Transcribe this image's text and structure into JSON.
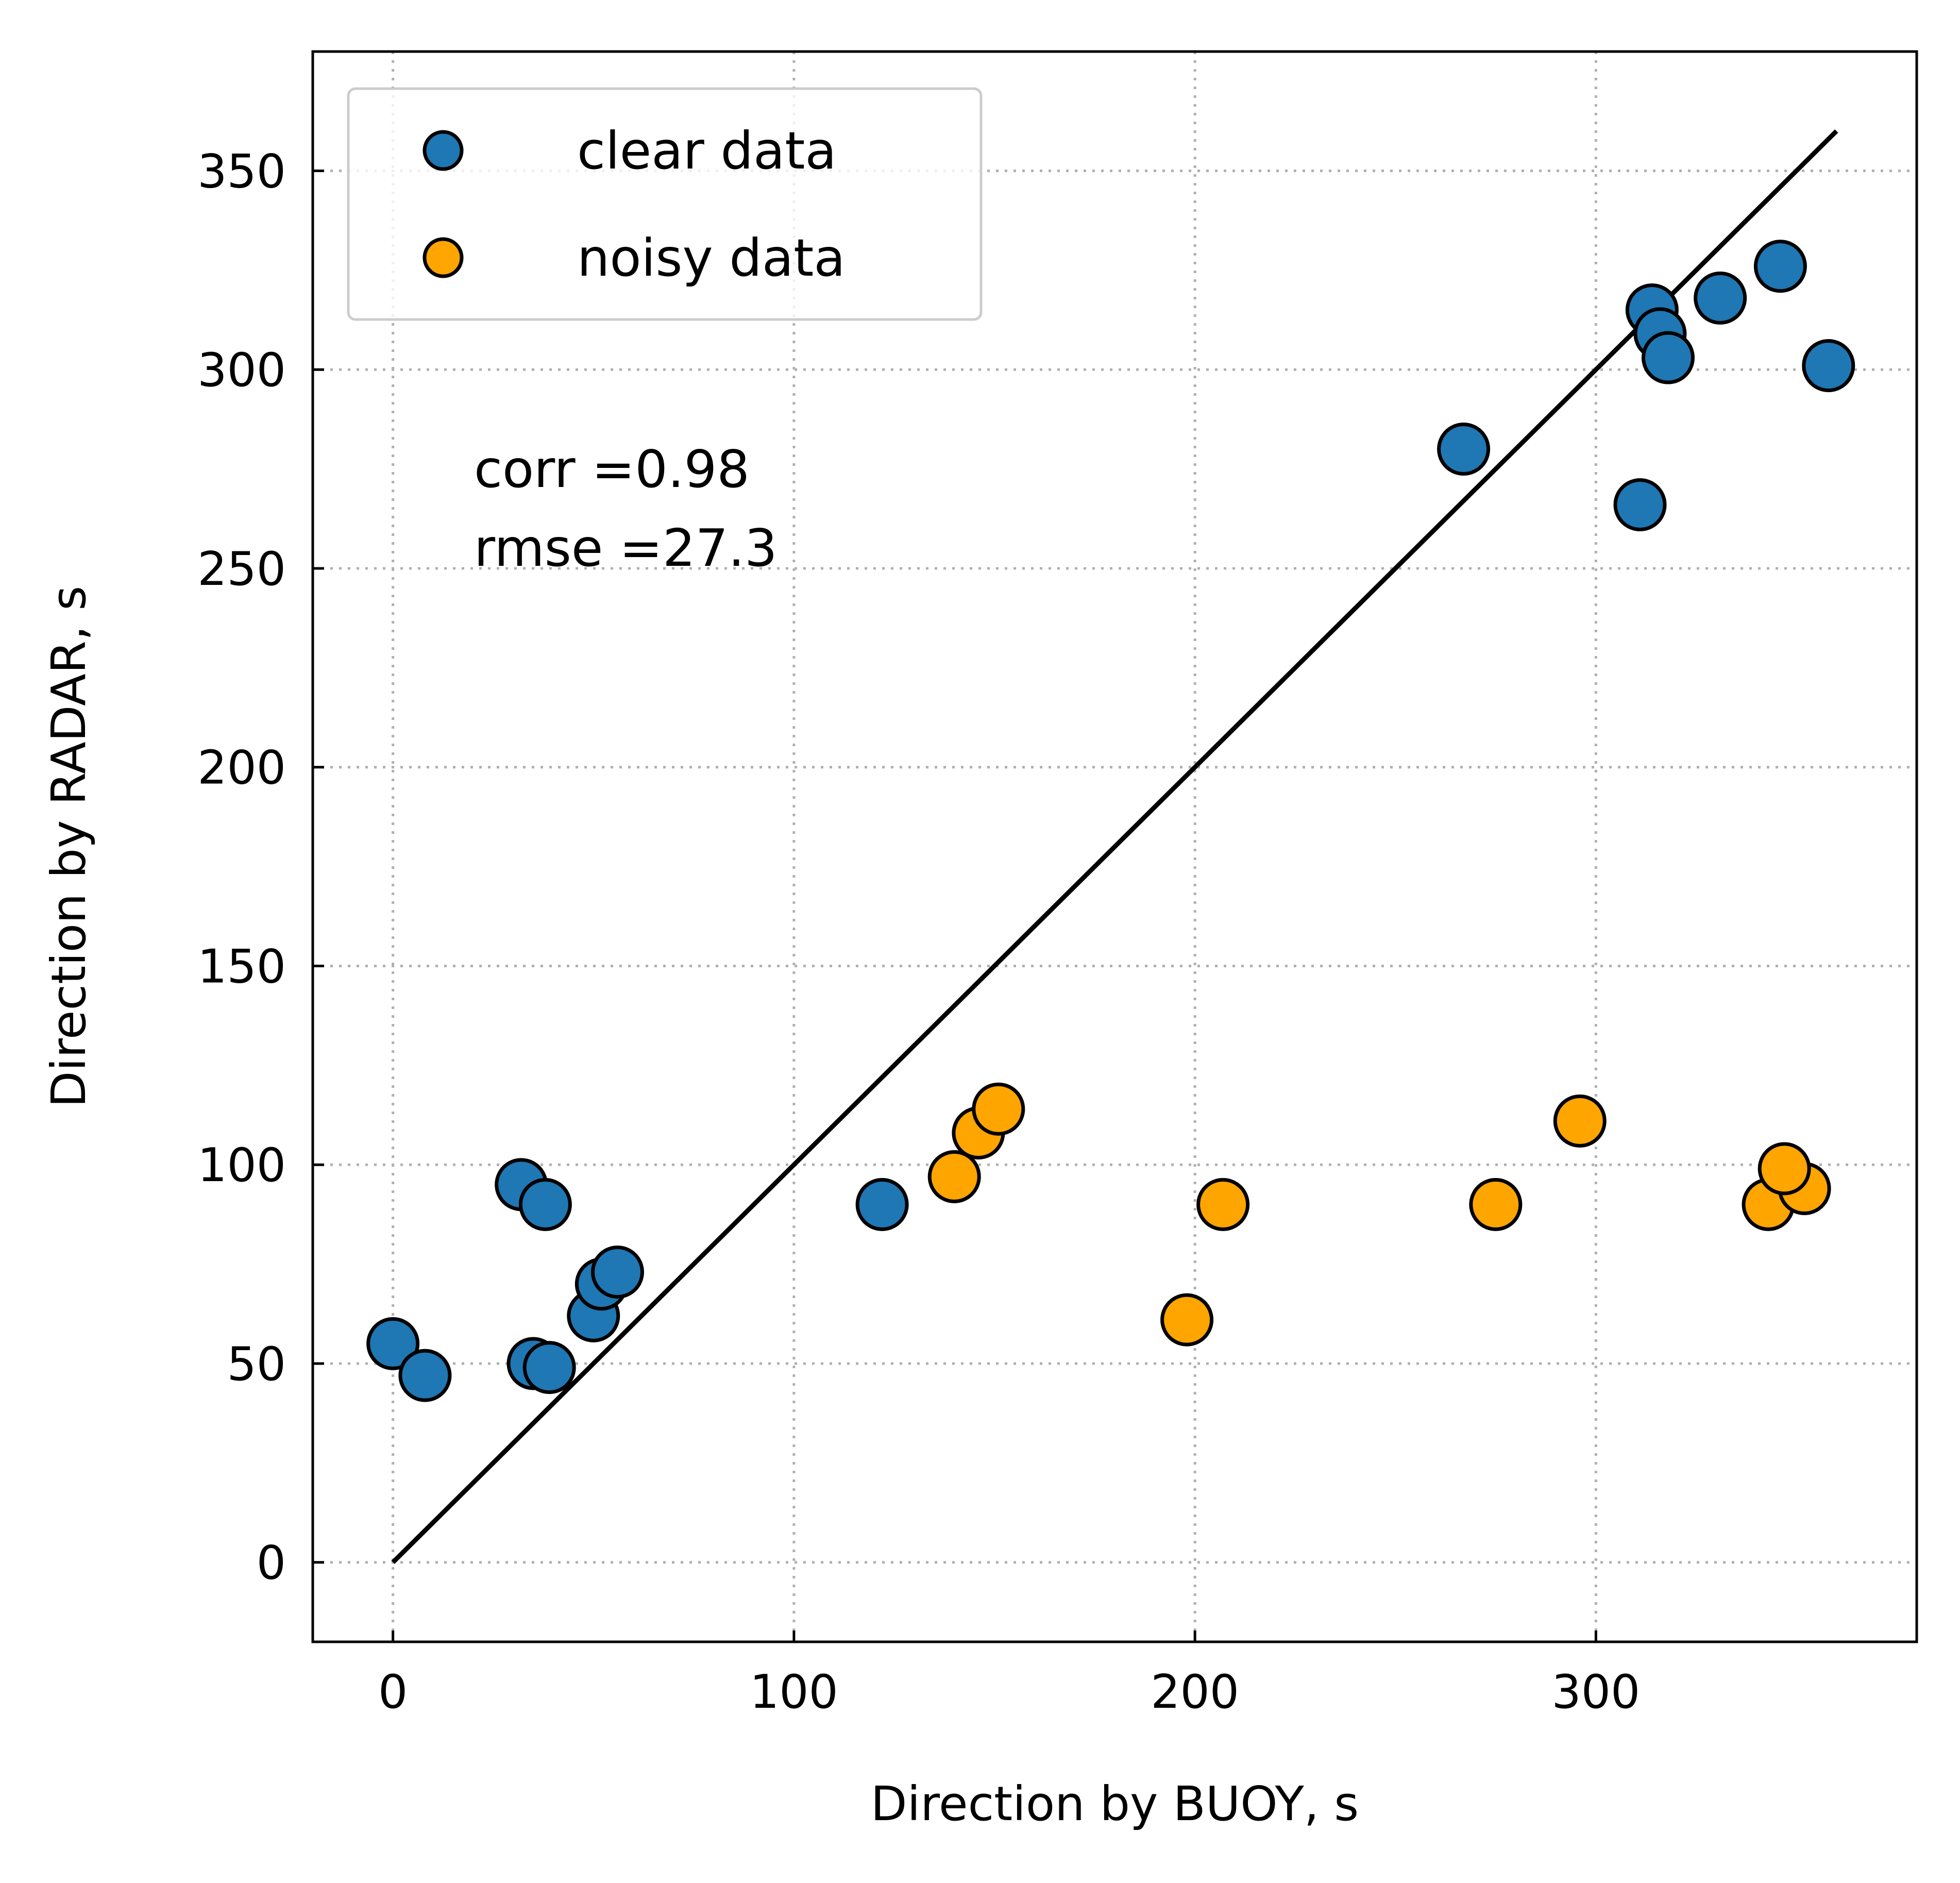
{
  "chart_data": {
    "type": "scatter",
    "title": "",
    "xlabel": "Direction by BUOY, s",
    "ylabel": "Direction by RADAR, s",
    "xlim": [
      -20,
      380
    ],
    "ylim": [
      -20,
      380
    ],
    "xticks": [
      0,
      100,
      200,
      300
    ],
    "yticks": [
      0,
      50,
      100,
      150,
      200,
      250,
      300,
      350
    ],
    "grid": true,
    "legend_position": "upper-left",
    "reference_line": {
      "x": [
        0,
        360
      ],
      "y": [
        0,
        360
      ],
      "color": "#000000"
    },
    "annotations": [
      "corr =0.98",
      "rmse =27.3"
    ],
    "series": [
      {
        "name": "clear data",
        "color": "#1f77b4",
        "points": [
          [
            0,
            55
          ],
          [
            8,
            47
          ],
          [
            32,
            95
          ],
          [
            38,
            90
          ],
          [
            35,
            50
          ],
          [
            39,
            49
          ],
          [
            50,
            62
          ],
          [
            52,
            70
          ],
          [
            56,
            73
          ],
          [
            122,
            90
          ],
          [
            267,
            280
          ],
          [
            311,
            266
          ],
          [
            314,
            315
          ],
          [
            316,
            309
          ],
          [
            318,
            303
          ],
          [
            331,
            318
          ],
          [
            346,
            326
          ],
          [
            358,
            301
          ]
        ]
      },
      {
        "name": "noisy data",
        "color": "#ffa500",
        "points": [
          [
            140,
            97
          ],
          [
            146,
            108
          ],
          [
            151,
            114
          ],
          [
            198,
            61
          ],
          [
            207,
            90
          ],
          [
            275,
            90
          ],
          [
            296,
            111
          ],
          [
            343,
            90
          ],
          [
            352,
            94
          ],
          [
            347,
            99
          ]
        ]
      }
    ]
  }
}
